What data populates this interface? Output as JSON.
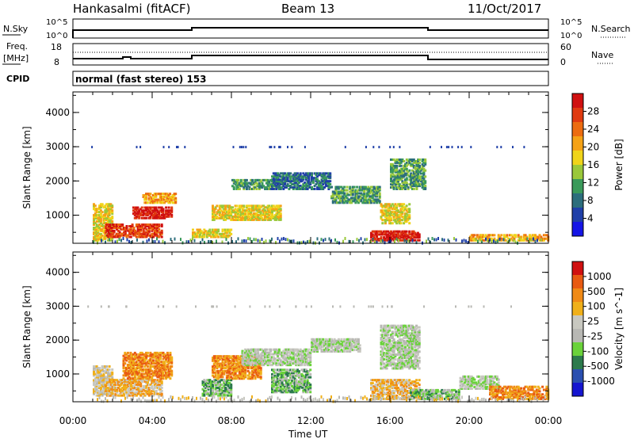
{
  "header": {
    "station": "Hankasalmi (fitACF)",
    "beam": "Beam 13",
    "date": "11/Oct/2017"
  },
  "top_panels": {
    "nsky_label": "N.Sky",
    "nsearch_label": "N.Search",
    "freq_label_1": "Freq.",
    "freq_label_2": "[MHz]",
    "nave_label": "Nave",
    "cpid_label": "CPID",
    "cpid_value": "normal (fast stereo) 153",
    "log_hi": "10^5",
    "log_lo": "10^0",
    "freq_hi": "18",
    "freq_lo": "8",
    "nave_hi": "60",
    "nave_lo": "0"
  },
  "colors": {
    "power_scale": [
      "#1515e6",
      "#1f3fa8",
      "#2c6e7c",
      "#3a9a5a",
      "#9ac83a",
      "#f0d41a",
      "#f5a216",
      "#ec6c10",
      "#e03a10",
      "#d01010"
    ],
    "velocity_scale": [
      "#1515d0",
      "#2a4fb0",
      "#2c7a4c",
      "#6ad23a",
      "#b8b8b4",
      "#c8c8c0",
      "#f0b01a",
      "#f08a16",
      "#e85a12",
      "#d01010"
    ]
  },
  "chart_data": [
    {
      "type": "heatmap",
      "title": "",
      "xlabel": "Time UT",
      "ylabel": "Slant Range [km]",
      "colorbar_label": "Power [dB]",
      "colorbar_ticks": [
        "4",
        "8",
        "12",
        "16",
        "20",
        "24",
        "28"
      ],
      "x_ticks": [
        "00:00",
        "04:00",
        "08:00",
        "12:00",
        "16:00",
        "20:00",
        "00:00"
      ],
      "y_ticks": [
        "1000",
        "2000",
        "3000",
        "4000"
      ],
      "xlim_hours": [
        0,
        24
      ],
      "ylim_km": [
        180,
        4600
      ],
      "regions": [
        {
          "t": [
            1.0,
            2.0
          ],
          "r": [
            300,
            1400
          ],
          "level": 5
        },
        {
          "t": [
            1.6,
            4.5
          ],
          "r": [
            400,
            800
          ],
          "level": 8
        },
        {
          "t": [
            3.0,
            5.0
          ],
          "r": [
            950,
            1300
          ],
          "level": 9
        },
        {
          "t": [
            3.5,
            5.2
          ],
          "r": [
            1400,
            1700
          ],
          "level": 6
        },
        {
          "t": [
            6.0,
            8.0
          ],
          "r": [
            400,
            650
          ],
          "level": 5
        },
        {
          "t": [
            7.0,
            10.5
          ],
          "r": [
            900,
            1350
          ],
          "level": 5
        },
        {
          "t": [
            8.0,
            10.5
          ],
          "r": [
            1800,
            2100
          ],
          "level": 3
        },
        {
          "t": [
            10.0,
            13.0
          ],
          "r": [
            1800,
            2300
          ],
          "level": 2
        },
        {
          "t": [
            13.0,
            15.5
          ],
          "r": [
            1400,
            1900
          ],
          "level": 3
        },
        {
          "t": [
            15.0,
            17.5
          ],
          "r": [
            300,
            600
          ],
          "level": 9
        },
        {
          "t": [
            15.5,
            17.0
          ],
          "r": [
            800,
            1400
          ],
          "level": 5
        },
        {
          "t": [
            16.0,
            17.8
          ],
          "r": [
            1800,
            2700
          ],
          "level": 3
        },
        {
          "t": [
            20.0,
            24.0
          ],
          "r": [
            300,
            500
          ],
          "level": 6
        }
      ]
    },
    {
      "type": "heatmap",
      "title": "",
      "xlabel": "Time UT",
      "ylabel": "Slant Range [km]",
      "colorbar_label": "Velocity [m s^-1]",
      "colorbar_ticks": [
        "1000",
        "500",
        "100",
        "25",
        "-25",
        "-100",
        "-500",
        "-1000"
      ],
      "x_ticks": [
        "00:00",
        "04:00",
        "08:00",
        "12:00",
        "16:00",
        "20:00",
        "00:00"
      ],
      "y_ticks": [
        "1000",
        "2000",
        "3000",
        "4000"
      ],
      "xlim_hours": [
        0,
        24
      ],
      "ylim_km": [
        180,
        4600
      ],
      "regions": [
        {
          "t": [
            1.0,
            2.0
          ],
          "r": [
            400,
            1300
          ],
          "level": 5
        },
        {
          "t": [
            1.6,
            4.5
          ],
          "r": [
            400,
            900
          ],
          "level": 6
        },
        {
          "t": [
            2.5,
            5.0
          ],
          "r": [
            900,
            1700
          ],
          "level": 7
        },
        {
          "t": [
            6.5,
            8.0
          ],
          "r": [
            400,
            900
          ],
          "level": 3
        },
        {
          "t": [
            7.0,
            9.5
          ],
          "r": [
            900,
            1600
          ],
          "level": 7
        },
        {
          "t": [
            8.5,
            12.0
          ],
          "r": [
            1300,
            1800
          ],
          "level": 4
        },
        {
          "t": [
            10.0,
            12.0
          ],
          "r": [
            500,
            1200
          ],
          "level": 3
        },
        {
          "t": [
            12.0,
            14.5
          ],
          "r": [
            1700,
            2100
          ],
          "level": 4
        },
        {
          "t": [
            15.0,
            17.5
          ],
          "r": [
            300,
            900
          ],
          "level": 6
        },
        {
          "t": [
            15.5,
            17.5
          ],
          "r": [
            1200,
            2500
          ],
          "level": 4
        },
        {
          "t": [
            17.0,
            19.5
          ],
          "r": [
            300,
            600
          ],
          "level": 3
        },
        {
          "t": [
            19.5,
            21.5
          ],
          "r": [
            600,
            1000
          ],
          "level": 4
        },
        {
          "t": [
            21.0,
            24.0
          ],
          "r": [
            300,
            700
          ],
          "level": 7
        }
      ]
    }
  ]
}
